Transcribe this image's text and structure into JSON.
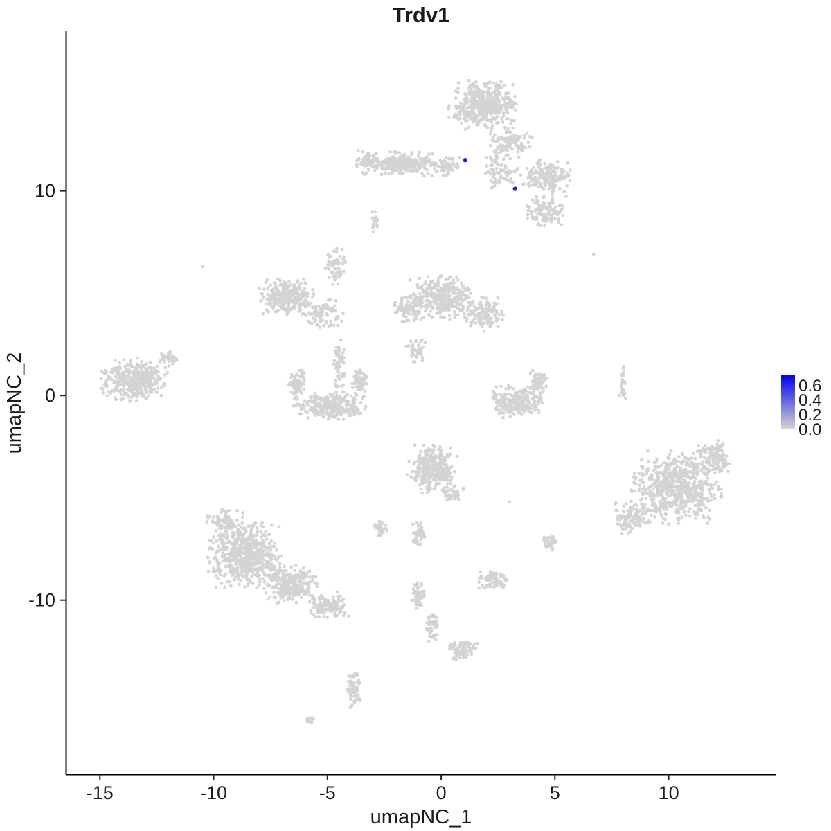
{
  "title": "Trdv1",
  "axes": {
    "x": {
      "label": "umapNC_1",
      "ticks": [
        -15,
        -10,
        -5,
        0,
        5,
        10
      ]
    },
    "y": {
      "label": "umapNC_2",
      "ticks": [
        -10,
        0,
        10
      ]
    }
  },
  "legend": {
    "labels": [
      "0.6",
      "0.4",
      "0.2",
      "0.0"
    ],
    "color_high": "#0000EE",
    "color_low": "#D3D3D3"
  },
  "chart_data": {
    "type": "scatter",
    "title": "Trdv1",
    "xlabel": "umapNC_1",
    "ylabel": "umapNC_2",
    "xlim": [
      -16.5,
      14.7
    ],
    "ylim": [
      -18.5,
      17.8
    ],
    "point_color": "#D3D3D3",
    "highlight_color": "#2222DD",
    "clusters": [
      {
        "cx": 1.8,
        "cy": 14.2,
        "rx": 1.5,
        "ry": 1.2,
        "n": 450
      },
      {
        "cx": 3.0,
        "cy": 12.3,
        "rx": 1.0,
        "ry": 0.8,
        "n": 130
      },
      {
        "cx": 4.6,
        "cy": 10.7,
        "rx": 1.1,
        "ry": 0.9,
        "n": 180
      },
      {
        "cx": 4.6,
        "cy": 9.0,
        "rx": 0.9,
        "ry": 0.8,
        "n": 120
      },
      {
        "cx": 2.6,
        "cy": 10.9,
        "rx": 0.8,
        "ry": 0.8,
        "n": 60
      },
      {
        "cx": -1.8,
        "cy": 11.3,
        "rx": 1.9,
        "ry": 0.6,
        "n": 260
      },
      {
        "cx": -3.3,
        "cy": 11.5,
        "rx": 0.5,
        "ry": 0.5,
        "n": 50
      },
      {
        "cx": 0.3,
        "cy": 11.2,
        "rx": 0.6,
        "ry": 0.5,
        "n": 50
      },
      {
        "cx": -2.9,
        "cy": 8.5,
        "rx": 0.18,
        "ry": 0.55,
        "n": 20
      },
      {
        "cx": -6.8,
        "cy": 4.8,
        "rx": 1.2,
        "ry": 0.9,
        "n": 280
      },
      {
        "cx": -5.2,
        "cy": 4.0,
        "rx": 0.9,
        "ry": 0.7,
        "n": 90
      },
      {
        "cx": -4.6,
        "cy": 6.3,
        "rx": 0.5,
        "ry": 0.9,
        "n": 60
      },
      {
        "cx": -4.5,
        "cy": 1.5,
        "rx": 0.3,
        "ry": 1.3,
        "n": 60
      },
      {
        "cx": 0.0,
        "cy": 4.8,
        "rx": 1.4,
        "ry": 1.1,
        "n": 320
      },
      {
        "cx": 1.9,
        "cy": 4.0,
        "rx": 0.9,
        "ry": 0.9,
        "n": 140
      },
      {
        "cx": -1.4,
        "cy": 4.2,
        "rx": 0.7,
        "ry": 0.8,
        "n": 90
      },
      {
        "cx": -1.1,
        "cy": 2.2,
        "rx": 0.5,
        "ry": 0.6,
        "n": 40
      },
      {
        "cx": -4.9,
        "cy": -0.5,
        "rx": 1.6,
        "ry": 0.7,
        "n": 280
      },
      {
        "cx": -6.3,
        "cy": 0.6,
        "rx": 0.4,
        "ry": 0.7,
        "n": 70
      },
      {
        "cx": -3.6,
        "cy": 0.7,
        "rx": 0.35,
        "ry": 0.7,
        "n": 70
      },
      {
        "cx": -13.5,
        "cy": 0.8,
        "rx": 1.5,
        "ry": 1.1,
        "n": 380
      },
      {
        "cx": -12.0,
        "cy": 1.8,
        "rx": 0.5,
        "ry": 0.4,
        "n": 30
      },
      {
        "cx": 3.3,
        "cy": -0.3,
        "rx": 1.2,
        "ry": 0.8,
        "n": 240
      },
      {
        "cx": 4.3,
        "cy": 0.7,
        "rx": 0.4,
        "ry": 0.6,
        "n": 60
      },
      {
        "cx": 8.0,
        "cy": 0.5,
        "rx": 0.18,
        "ry": 1.0,
        "n": 25
      },
      {
        "cx": -0.4,
        "cy": -3.6,
        "rx": 1.1,
        "ry": 1.2,
        "n": 300
      },
      {
        "cx": 0.5,
        "cy": -4.8,
        "rx": 0.5,
        "ry": 0.4,
        "n": 40
      },
      {
        "cx": -8.6,
        "cy": -7.8,
        "rx": 1.7,
        "ry": 1.6,
        "n": 600
      },
      {
        "cx": -6.6,
        "cy": -9.2,
        "rx": 1.3,
        "ry": 1.0,
        "n": 250
      },
      {
        "cx": -4.9,
        "cy": -10.3,
        "rx": 0.9,
        "ry": 0.7,
        "n": 130
      },
      {
        "cx": -9.5,
        "cy": -6.2,
        "rx": 0.9,
        "ry": 0.7,
        "n": 90
      },
      {
        "cx": 10.4,
        "cy": -4.5,
        "rx": 2.1,
        "ry": 1.8,
        "n": 650
      },
      {
        "cx": 12.0,
        "cy": -3.0,
        "rx": 0.8,
        "ry": 0.8,
        "n": 120
      },
      {
        "cx": 8.4,
        "cy": -6.0,
        "rx": 0.8,
        "ry": 0.8,
        "n": 100
      },
      {
        "cx": 2.3,
        "cy": -9.0,
        "rx": 0.65,
        "ry": 0.5,
        "n": 80
      },
      {
        "cx": 4.8,
        "cy": -7.2,
        "rx": 0.35,
        "ry": 0.4,
        "n": 35
      },
      {
        "cx": -1.0,
        "cy": -6.8,
        "rx": 0.28,
        "ry": 0.65,
        "n": 45
      },
      {
        "cx": -2.7,
        "cy": -6.5,
        "rx": 0.35,
        "ry": 0.4,
        "n": 35
      },
      {
        "cx": -1.0,
        "cy": -9.8,
        "rx": 0.3,
        "ry": 0.7,
        "n": 50
      },
      {
        "cx": -0.4,
        "cy": -11.3,
        "rx": 0.3,
        "ry": 0.8,
        "n": 50
      },
      {
        "cx": 0.9,
        "cy": -12.4,
        "rx": 0.7,
        "ry": 0.55,
        "n": 80
      },
      {
        "cx": -3.8,
        "cy": -14.4,
        "rx": 0.4,
        "ry": 0.85,
        "n": 60
      },
      {
        "cx": -5.8,
        "cy": -15.9,
        "rx": 0.25,
        "ry": 0.18,
        "n": 10
      }
    ],
    "singletons": [
      [
        -10.5,
        6.3
      ],
      [
        6.7,
        6.9
      ],
      [
        3.0,
        -5.2
      ]
    ],
    "highlight_points": [
      {
        "x": 1.05,
        "y": 11.5
      },
      {
        "x": 3.25,
        "y": 10.1
      }
    ]
  }
}
